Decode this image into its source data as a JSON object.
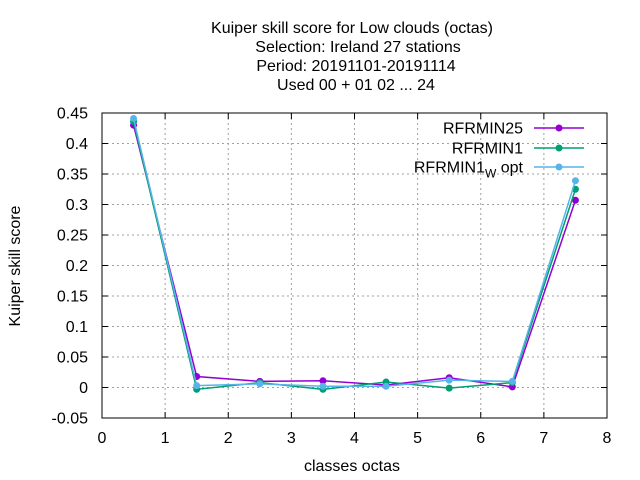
{
  "chart_data": {
    "type": "line",
    "title_lines": [
      "Kuiper skill score  for Low clouds (octas)",
      "Selection: Ireland      27 stations",
      "Period: 20191101-20191114",
      "Used  00 + 01 02 ... 24"
    ],
    "xlabel": "classes octas",
    "ylabel": "Kuiper skill score",
    "xlim": [
      0,
      8
    ],
    "ylim": [
      -0.05,
      0.45
    ],
    "xticks": [
      "0",
      "1",
      "2",
      "3",
      "4",
      "5",
      "6",
      "7",
      "8"
    ],
    "yticks": [
      "-0.05",
      "0",
      "0.05",
      "0.1",
      "0.15",
      "0.2",
      "0.25",
      "0.3",
      "0.35",
      "0.4",
      "0.45"
    ],
    "grid": true,
    "legend_position": "top-right",
    "x": [
      0.5,
      1.5,
      2.5,
      3.5,
      4.5,
      5.5,
      6.5,
      7.5
    ],
    "series": [
      {
        "name": "RFRMIN25",
        "color": "#9400d3",
        "values": [
          0.43,
          0.018,
          0.01,
          0.011,
          0.004,
          0.016,
          0.001,
          0.307
        ]
      },
      {
        "name": "RFRMIN1",
        "color": "#009e73",
        "values": [
          0.436,
          -0.003,
          0.008,
          -0.003,
          0.009,
          -0.001,
          0.008,
          0.325
        ]
      },
      {
        "name": "RFRMIN1",
        "name_subscript": "W",
        "name_suffix": " opt",
        "color": "#56b4e9",
        "values": [
          0.441,
          0.003,
          0.006,
          0.002,
          0.002,
          0.012,
          0.01,
          0.339
        ]
      }
    ]
  }
}
